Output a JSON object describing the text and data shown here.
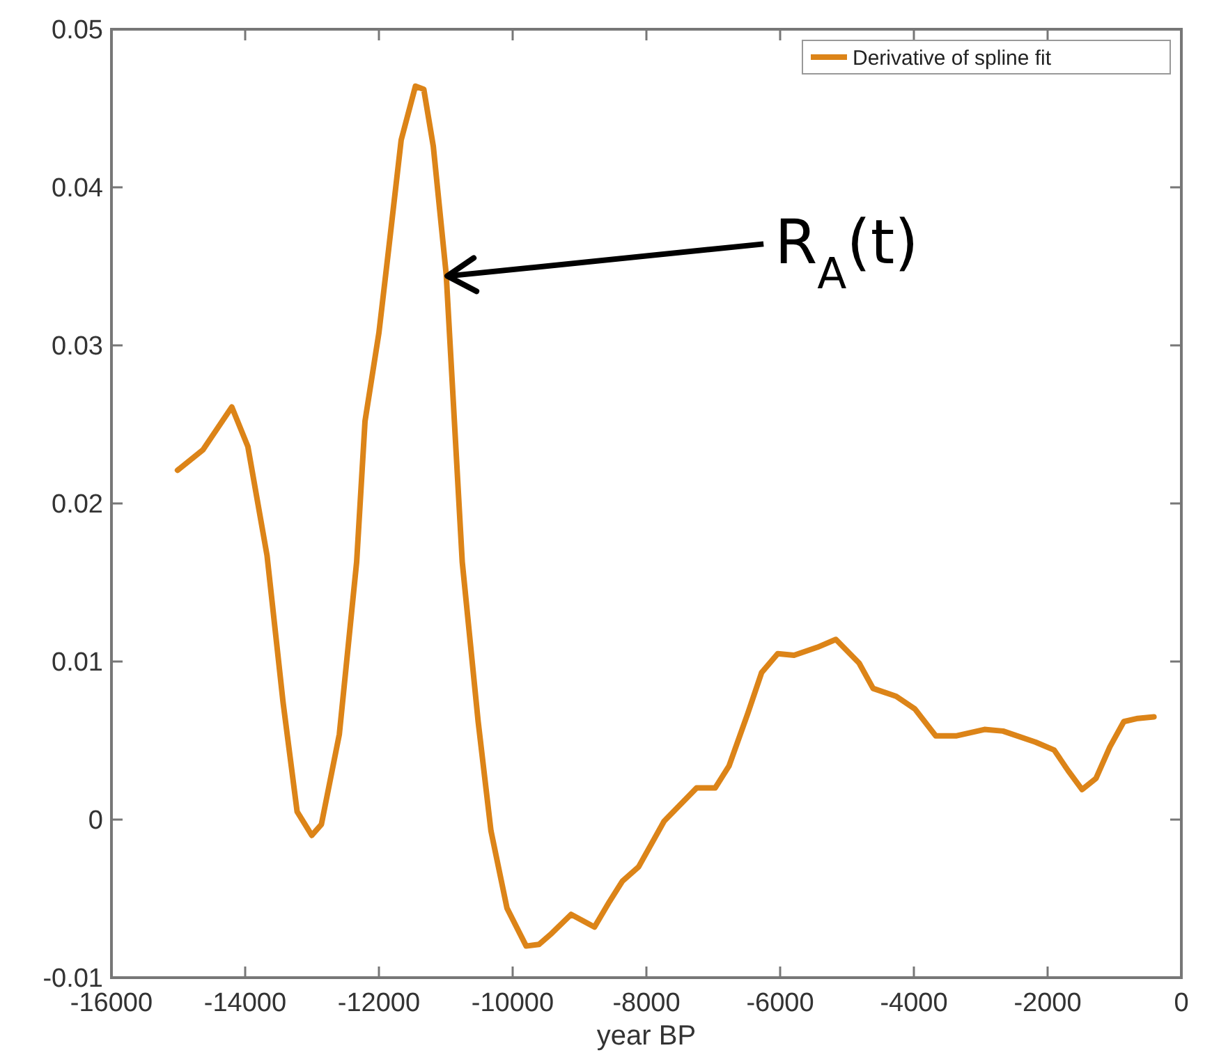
{
  "chart_data": {
    "type": "line",
    "xlabel": "year BP",
    "xlim": [
      -16000,
      0
    ],
    "xticks": [
      -16000,
      -14000,
      -12000,
      -10000,
      -8000,
      -6000,
      -4000,
      -2000,
      0
    ],
    "ylim": [
      -0.01,
      0.05
    ],
    "yticks": [
      -0.01,
      0,
      0.01,
      0.02,
      0.03,
      0.04,
      0.05
    ],
    "grid": false,
    "legend": "top right",
    "marker": "none",
    "line_style": "solid",
    "series": [
      {
        "name": "Derivative of spline fit",
        "color": "#dc8418",
        "x": [
          -15012,
          -14630,
          -14200,
          -13960,
          -13673,
          -13433,
          -13223,
          -13004,
          -12860,
          -12592,
          -12333,
          -12208,
          -12000,
          -11854,
          -11667,
          -11454,
          -11329,
          -11187,
          -10994,
          -10754,
          -10516,
          -10325,
          -10085,
          -9798,
          -9606,
          -9417,
          -9125,
          -8777,
          -8554,
          -8360,
          -8118,
          -7735,
          -7250,
          -6972,
          -6764,
          -6485,
          -6277,
          -6035,
          -5792,
          -5444,
          -5167,
          -4819,
          -4610,
          -4264,
          -3985,
          -3673,
          -3360,
          -2944,
          -2667,
          -2181,
          -1902,
          -1694,
          -1485,
          -1277,
          -1069,
          -860,
          -652,
          -410
        ],
        "values": [
          0.0221,
          0.0234,
          0.0261,
          0.0236,
          0.0167,
          0.0074,
          0.0005,
          -0.001,
          -0.0003,
          0.0054,
          0.0163,
          0.0252,
          0.0308,
          0.0361,
          0.043,
          0.0464,
          0.0462,
          0.0426,
          0.0345,
          0.0163,
          0.0062,
          -0.0007,
          -0.0056,
          -0.008,
          -0.0079,
          -0.0072,
          -0.006,
          -0.0068,
          -0.0052,
          -0.0039,
          -0.003,
          -0.0001,
          0.002,
          0.002,
          0.0034,
          0.0067,
          0.0093,
          0.0105,
          0.0104,
          0.0109,
          0.0114,
          0.0099,
          0.0083,
          0.0078,
          0.007,
          0.0053,
          0.0053,
          0.0057,
          0.0056,
          0.0049,
          0.0044,
          0.0031,
          0.0019,
          0.0026,
          0.0046,
          0.0062,
          0.0064,
          0.0065
        ]
      }
    ],
    "annotations": [
      {
        "text": "R$_{A}$(t)",
        "x": -11040,
        "y": 0.0343
      }
    ]
  }
}
